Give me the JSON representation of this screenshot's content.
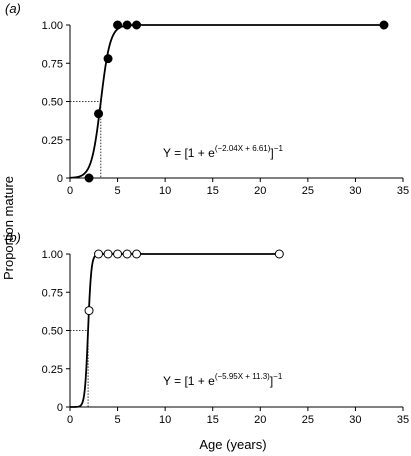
{
  "figure": {
    "ylabel": "Proportion mature",
    "xlabel": "Age (years)"
  },
  "chart_data": [
    {
      "type": "scatter",
      "panel_label": "(a)",
      "marker": "filled",
      "x": [
        2,
        3,
        4,
        5,
        6,
        7,
        33
      ],
      "y": [
        0.0,
        0.42,
        0.78,
        1.0,
        1.0,
        1.0,
        1.0
      ],
      "curve": {
        "a": -2.04,
        "b": 6.61
      },
      "equation": {
        "lhs": "Y = [1 + e",
        "exp": "(−2.04X + 6.61)",
        "rhs": "]",
        "power": "−1"
      },
      "guide": {
        "y": 0.5,
        "x": 3.24
      },
      "xlim": [
        0,
        35
      ],
      "ylim": [
        0,
        1
      ],
      "xticks": [
        0,
        5,
        10,
        15,
        20,
        25,
        30,
        35
      ],
      "yticks": [
        "0",
        "0.25",
        "0.50",
        "0.75",
        "1.00"
      ]
    },
    {
      "type": "scatter",
      "panel_label": "(b)",
      "marker": "open",
      "x": [
        2,
        3,
        4,
        5,
        6,
        7,
        22
      ],
      "y": [
        0.63,
        1.0,
        1.0,
        1.0,
        1.0,
        1.0,
        1.0
      ],
      "curve": {
        "a": -5.95,
        "b": 11.3
      },
      "equation": {
        "lhs": "Y = [1 + e",
        "exp": "(−5.95X + 11.3)",
        "rhs": "]",
        "power": "−1"
      },
      "guide": {
        "y": 0.5,
        "x": 1.9
      },
      "xlim": [
        0,
        35
      ],
      "ylim": [
        0,
        1
      ],
      "xticks": [
        0,
        5,
        10,
        15,
        20,
        25,
        30,
        35
      ],
      "yticks": [
        "0",
        "0.25",
        "0.50",
        "0.75",
        "1.00"
      ]
    }
  ]
}
